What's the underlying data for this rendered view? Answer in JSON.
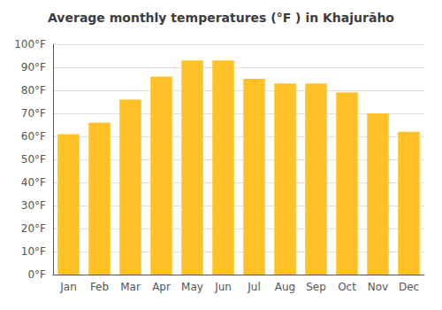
{
  "chart_data": {
    "type": "bar",
    "title": "Average monthly temperatures (°F ) in Khajurāho",
    "categories": [
      "Jan",
      "Feb",
      "Mar",
      "Apr",
      "May",
      "Jun",
      "Jul",
      "Aug",
      "Sep",
      "Oct",
      "Nov",
      "Dec"
    ],
    "values": [
      61,
      66,
      76,
      86,
      93,
      93,
      85,
      83,
      83,
      79,
      70,
      62
    ],
    "color": "#FFC125",
    "ylim": [
      0,
      100
    ],
    "yticks": [
      {
        "value": 0,
        "label": "0°F"
      },
      {
        "value": 10,
        "label": "10°F"
      },
      {
        "value": 20,
        "label": "20°F"
      },
      {
        "value": 30,
        "label": "30°F"
      },
      {
        "value": 40,
        "label": "40°F"
      },
      {
        "value": 50,
        "label": "50°F"
      },
      {
        "value": 60,
        "label": "60°F"
      },
      {
        "value": 70,
        "label": "70°F"
      },
      {
        "value": 80,
        "label": "80°F"
      },
      {
        "value": 90,
        "label": "90°F"
      },
      {
        "value": 100,
        "label": "100°F"
      }
    ],
    "grid": true
  }
}
